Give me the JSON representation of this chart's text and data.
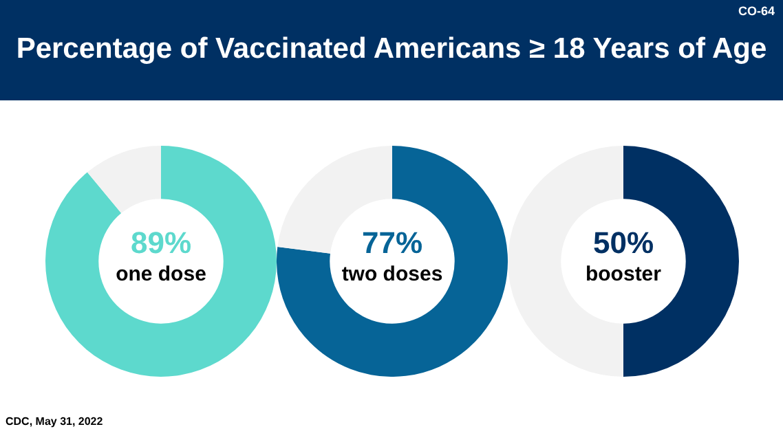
{
  "chart_data": [
    {
      "type": "donut",
      "title": "Percentage of Vaccinated Americans ≥ 18 Years of Age",
      "annotations": [
        "CO-64",
        "CDC, May 31, 2022"
      ],
      "categories": [
        "one dose",
        null
      ],
      "values": [
        89,
        11
      ],
      "colors": [
        "#5dd9cd",
        "#f2f2f2"
      ],
      "value_labels": [
        "89%",
        null
      ]
    },
    {
      "type": "donut",
      "categories": [
        "two doses",
        null
      ],
      "values": [
        77,
        23
      ],
      "colors": [
        "#066497",
        "#f2f2f2"
      ],
      "value_labels": [
        "77%",
        null
      ]
    },
    {
      "type": "donut",
      "categories": [
        "booster",
        null
      ],
      "values": [
        50,
        50
      ],
      "colors": [
        "#003063",
        "#f2f2f2"
      ],
      "value_labels": [
        "50%",
        null
      ]
    }
  ]
}
